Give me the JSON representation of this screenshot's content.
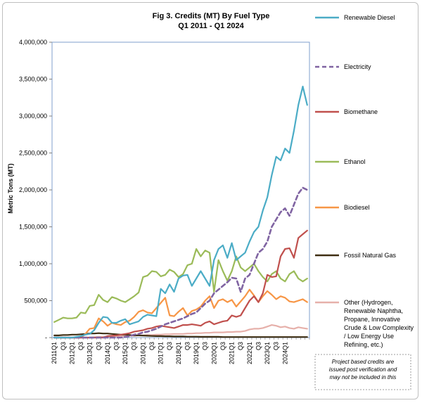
{
  "chart_data": {
    "type": "line",
    "title": "Fig 3. Credits (MT) By Fuel Type",
    "subtitle": "Q1 2011 - Q1 2024",
    "xlabel": "",
    "ylabel": "Metric Tons (MT)",
    "ylim": [
      0,
      4000000
    ],
    "y_ticks": [
      "-",
      "500,000",
      "1,000,000",
      "1,500,000",
      "2,000,000",
      "2,500,000",
      "3,000,000",
      "3,500,000",
      "4,000,000"
    ],
    "x_tick_labels": [
      "2011Q1",
      "Q3",
      "2012Q1",
      "Q3",
      "2013Q1",
      "Q3",
      "2014Q1",
      "Q3",
      "2015Q1",
      "Q3",
      "2016Q1",
      "Q3",
      "2017Q1",
      "Q3",
      "2018Q1",
      "Q3",
      "2019Q1",
      "Q3",
      "2020Q1",
      "Q3",
      "2021Q1",
      "Q3",
      "2022Q1",
      "Q3",
      "2023Q1",
      "Q3",
      "2024Q1"
    ],
    "grid": false,
    "legend_position": "right",
    "note": "Project based credits are issued post verification and may not be included in this",
    "series": [
      {
        "name": "Renewable Diesel",
        "color": "#4BACC6",
        "dash": false,
        "values": [
          0,
          0,
          0,
          0,
          0,
          10000,
          20000,
          40000,
          50000,
          100000,
          200000,
          280000,
          270000,
          200000,
          200000,
          230000,
          250000,
          180000,
          200000,
          220000,
          280000,
          310000,
          300000,
          290000,
          660000,
          600000,
          720000,
          620000,
          800000,
          840000,
          850000,
          700000,
          800000,
          900000,
          800000,
          700000,
          1050000,
          1200000,
          1250000,
          1080000,
          1280000,
          1050000,
          1100000,
          1150000,
          1300000,
          1430000,
          1500000,
          1720000,
          1900000,
          2200000,
          2450000,
          2400000,
          2560000,
          2500000,
          2800000,
          3150000,
          3400000,
          3150000
        ]
      },
      {
        "name": "Electricity",
        "color": "#8064A2",
        "dash": true,
        "values": [
          0,
          0,
          0,
          0,
          0,
          0,
          0,
          0,
          0,
          0,
          0,
          0,
          0,
          0,
          0,
          0,
          10000,
          20000,
          40000,
          50000,
          70000,
          80000,
          100000,
          120000,
          150000,
          180000,
          200000,
          220000,
          240000,
          260000,
          290000,
          320000,
          340000,
          400000,
          460000,
          500000,
          600000,
          650000,
          700000,
          750000,
          810000,
          800000,
          620000,
          800000,
          850000,
          1000000,
          1150000,
          1200000,
          1300000,
          1500000,
          1600000,
          1700000,
          1750000,
          1650000,
          1800000,
          1950000,
          2030000,
          2000000
        ]
      },
      {
        "name": "Biomethane",
        "color": "#C0504D",
        "dash": false,
        "values": [
          0,
          0,
          0,
          0,
          0,
          0,
          0,
          0,
          0,
          0,
          0,
          0,
          20000,
          25000,
          30000,
          40000,
          50000,
          60000,
          80000,
          90000,
          100000,
          120000,
          130000,
          150000,
          160000,
          150000,
          140000,
          130000,
          150000,
          170000,
          170000,
          180000,
          170000,
          160000,
          200000,
          220000,
          180000,
          200000,
          220000,
          230000,
          300000,
          280000,
          300000,
          400000,
          500000,
          560000,
          480000,
          600000,
          850000,
          820000,
          830000,
          1100000,
          1200000,
          1210000,
          1080000,
          1350000,
          1400000,
          1450000
        ]
      },
      {
        "name": "Ethanol",
        "color": "#9BBB59",
        "dash": false,
        "values": [
          210000,
          240000,
          270000,
          260000,
          260000,
          270000,
          340000,
          330000,
          430000,
          440000,
          580000,
          510000,
          480000,
          550000,
          530000,
          500000,
          480000,
          520000,
          560000,
          610000,
          820000,
          840000,
          900000,
          890000,
          830000,
          850000,
          920000,
          890000,
          820000,
          860000,
          980000,
          1000000,
          1200000,
          1100000,
          1180000,
          1150000,
          620000,
          1050000,
          900000,
          770000,
          900000,
          1100000,
          950000,
          900000,
          950000,
          1000000,
          900000,
          820000,
          760000,
          860000,
          900000,
          800000,
          760000,
          860000,
          900000,
          800000,
          760000,
          800000
        ]
      },
      {
        "name": "Biodiesel",
        "color": "#F79646",
        "dash": false,
        "values": [
          0,
          0,
          0,
          0,
          0,
          0,
          0,
          50000,
          120000,
          130000,
          260000,
          220000,
          160000,
          200000,
          180000,
          170000,
          210000,
          230000,
          280000,
          350000,
          370000,
          340000,
          330000,
          400000,
          470000,
          540000,
          300000,
          290000,
          350000,
          400000,
          300000,
          360000,
          380000,
          420000,
          500000,
          560000,
          400000,
          500000,
          520000,
          480000,
          510000,
          420000,
          490000,
          560000,
          650000,
          570000,
          480000,
          560000,
          630000,
          580000,
          520000,
          560000,
          540000,
          490000,
          480000,
          500000,
          520000,
          480000
        ]
      },
      {
        "name": "Fossil Natural Gas",
        "color": "#3E2E12",
        "dash": false,
        "values": [
          30000,
          30000,
          35000,
          35000,
          40000,
          40000,
          45000,
          50000,
          55000,
          55000,
          60000,
          55000,
          55000,
          50000,
          45000,
          40000,
          40000,
          35000,
          30000,
          30000,
          28000,
          25000,
          22000,
          20000,
          20000,
          18000,
          18000,
          15000,
          15000,
          15000,
          12000,
          12000,
          12000,
          10000,
          10000,
          10000,
          10000,
          10000,
          8000,
          8000,
          8000,
          8000,
          8000,
          8000,
          8000,
          8000,
          8000,
          8000,
          8000,
          8000,
          8000,
          8000,
          8000,
          8000,
          8000,
          8000,
          8000,
          8000
        ]
      },
      {
        "name": "Other (Hydrogen, Renewable Naphtha, Propane, Innovative Crude & Low Complexity / Low Energy Use Refining, etc.)",
        "color": "#E6B0AA",
        "dash": false,
        "values": [
          0,
          0,
          0,
          0,
          0,
          0,
          0,
          0,
          0,
          5000,
          10000,
          10000,
          15000,
          15000,
          20000,
          20000,
          20000,
          25000,
          25000,
          30000,
          30000,
          35000,
          35000,
          40000,
          40000,
          45000,
          45000,
          50000,
          50000,
          50000,
          55000,
          55000,
          60000,
          60000,
          65000,
          65000,
          70000,
          70000,
          70000,
          75000,
          75000,
          80000,
          80000,
          90000,
          110000,
          120000,
          120000,
          130000,
          150000,
          170000,
          160000,
          140000,
          150000,
          130000,
          120000,
          140000,
          130000,
          120000
        ]
      }
    ]
  }
}
